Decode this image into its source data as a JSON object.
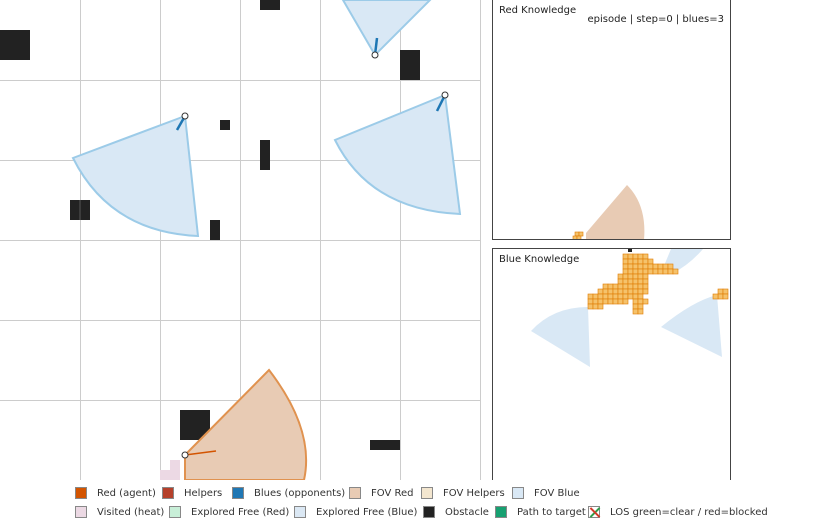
{
  "status": {
    "text": "episode | step=0 | blues=3"
  },
  "panels": {
    "red_knowledge": {
      "title": "Red Knowledge"
    },
    "blue_knowledge": {
      "title": "Blue Knowledge"
    }
  },
  "legend": {
    "items": [
      {
        "label": "Red (agent)",
        "color": "#d35400"
      },
      {
        "label": "Helpers",
        "color": "#b5402b"
      },
      {
        "label": "Blues (opponents)",
        "color": "#1f77b4"
      },
      {
        "label": "FOV Red",
        "color": "#e8cbb4"
      },
      {
        "label": "FOV Helpers",
        "color": "#f3e6cf"
      },
      {
        "label": "FOV Blue",
        "color": "#d9e8f5"
      },
      {
        "label": "Visited (heat)",
        "color": "#ecd9e4"
      },
      {
        "label": "Explored Free (Red)",
        "color": "#c8efd8"
      },
      {
        "label": "Explored Free (Blue)",
        "color": "#dbe8f4"
      },
      {
        "label": "Obstacle",
        "color": "#222222"
      },
      {
        "label": "Path to target",
        "color": "#17a071"
      },
      {
        "label": "LOS green=clear / red=blocked",
        "icon": "los-cross-icon"
      }
    ]
  },
  "colors": {
    "grid": "#cccccc",
    "obstacle": "#222222",
    "fov_blue_fill": "#d9e8f5",
    "fov_blue_edge": "#9ccbe8",
    "fov_red_fill": "#e8cbb4",
    "fov_red_edge": "#e0924f",
    "heading_blue": "#1f77b4",
    "heading_red": "#d35400",
    "blue_known_cell": "#f5c26b",
    "blue_known_cell_edge": "#e07b00",
    "visited": "#ecd9e4"
  }
}
